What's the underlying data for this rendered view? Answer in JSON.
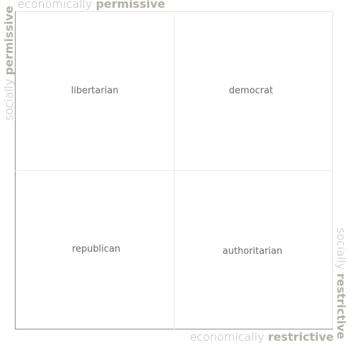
{
  "axes": {
    "top": {
      "prefix": "economically",
      "emphasis": "permissive"
    },
    "bottom": {
      "prefix": "economically",
      "emphasis": "restrictive"
    },
    "left": {
      "prefix": "socially",
      "emphasis": "permissive"
    },
    "right": {
      "prefix": "socially",
      "emphasis": "restrictive"
    }
  },
  "quadrants": {
    "top_left": "libertarian",
    "top_right": "democrat",
    "bottom_left": "republican",
    "bottom_right": "authoritarian"
  }
}
